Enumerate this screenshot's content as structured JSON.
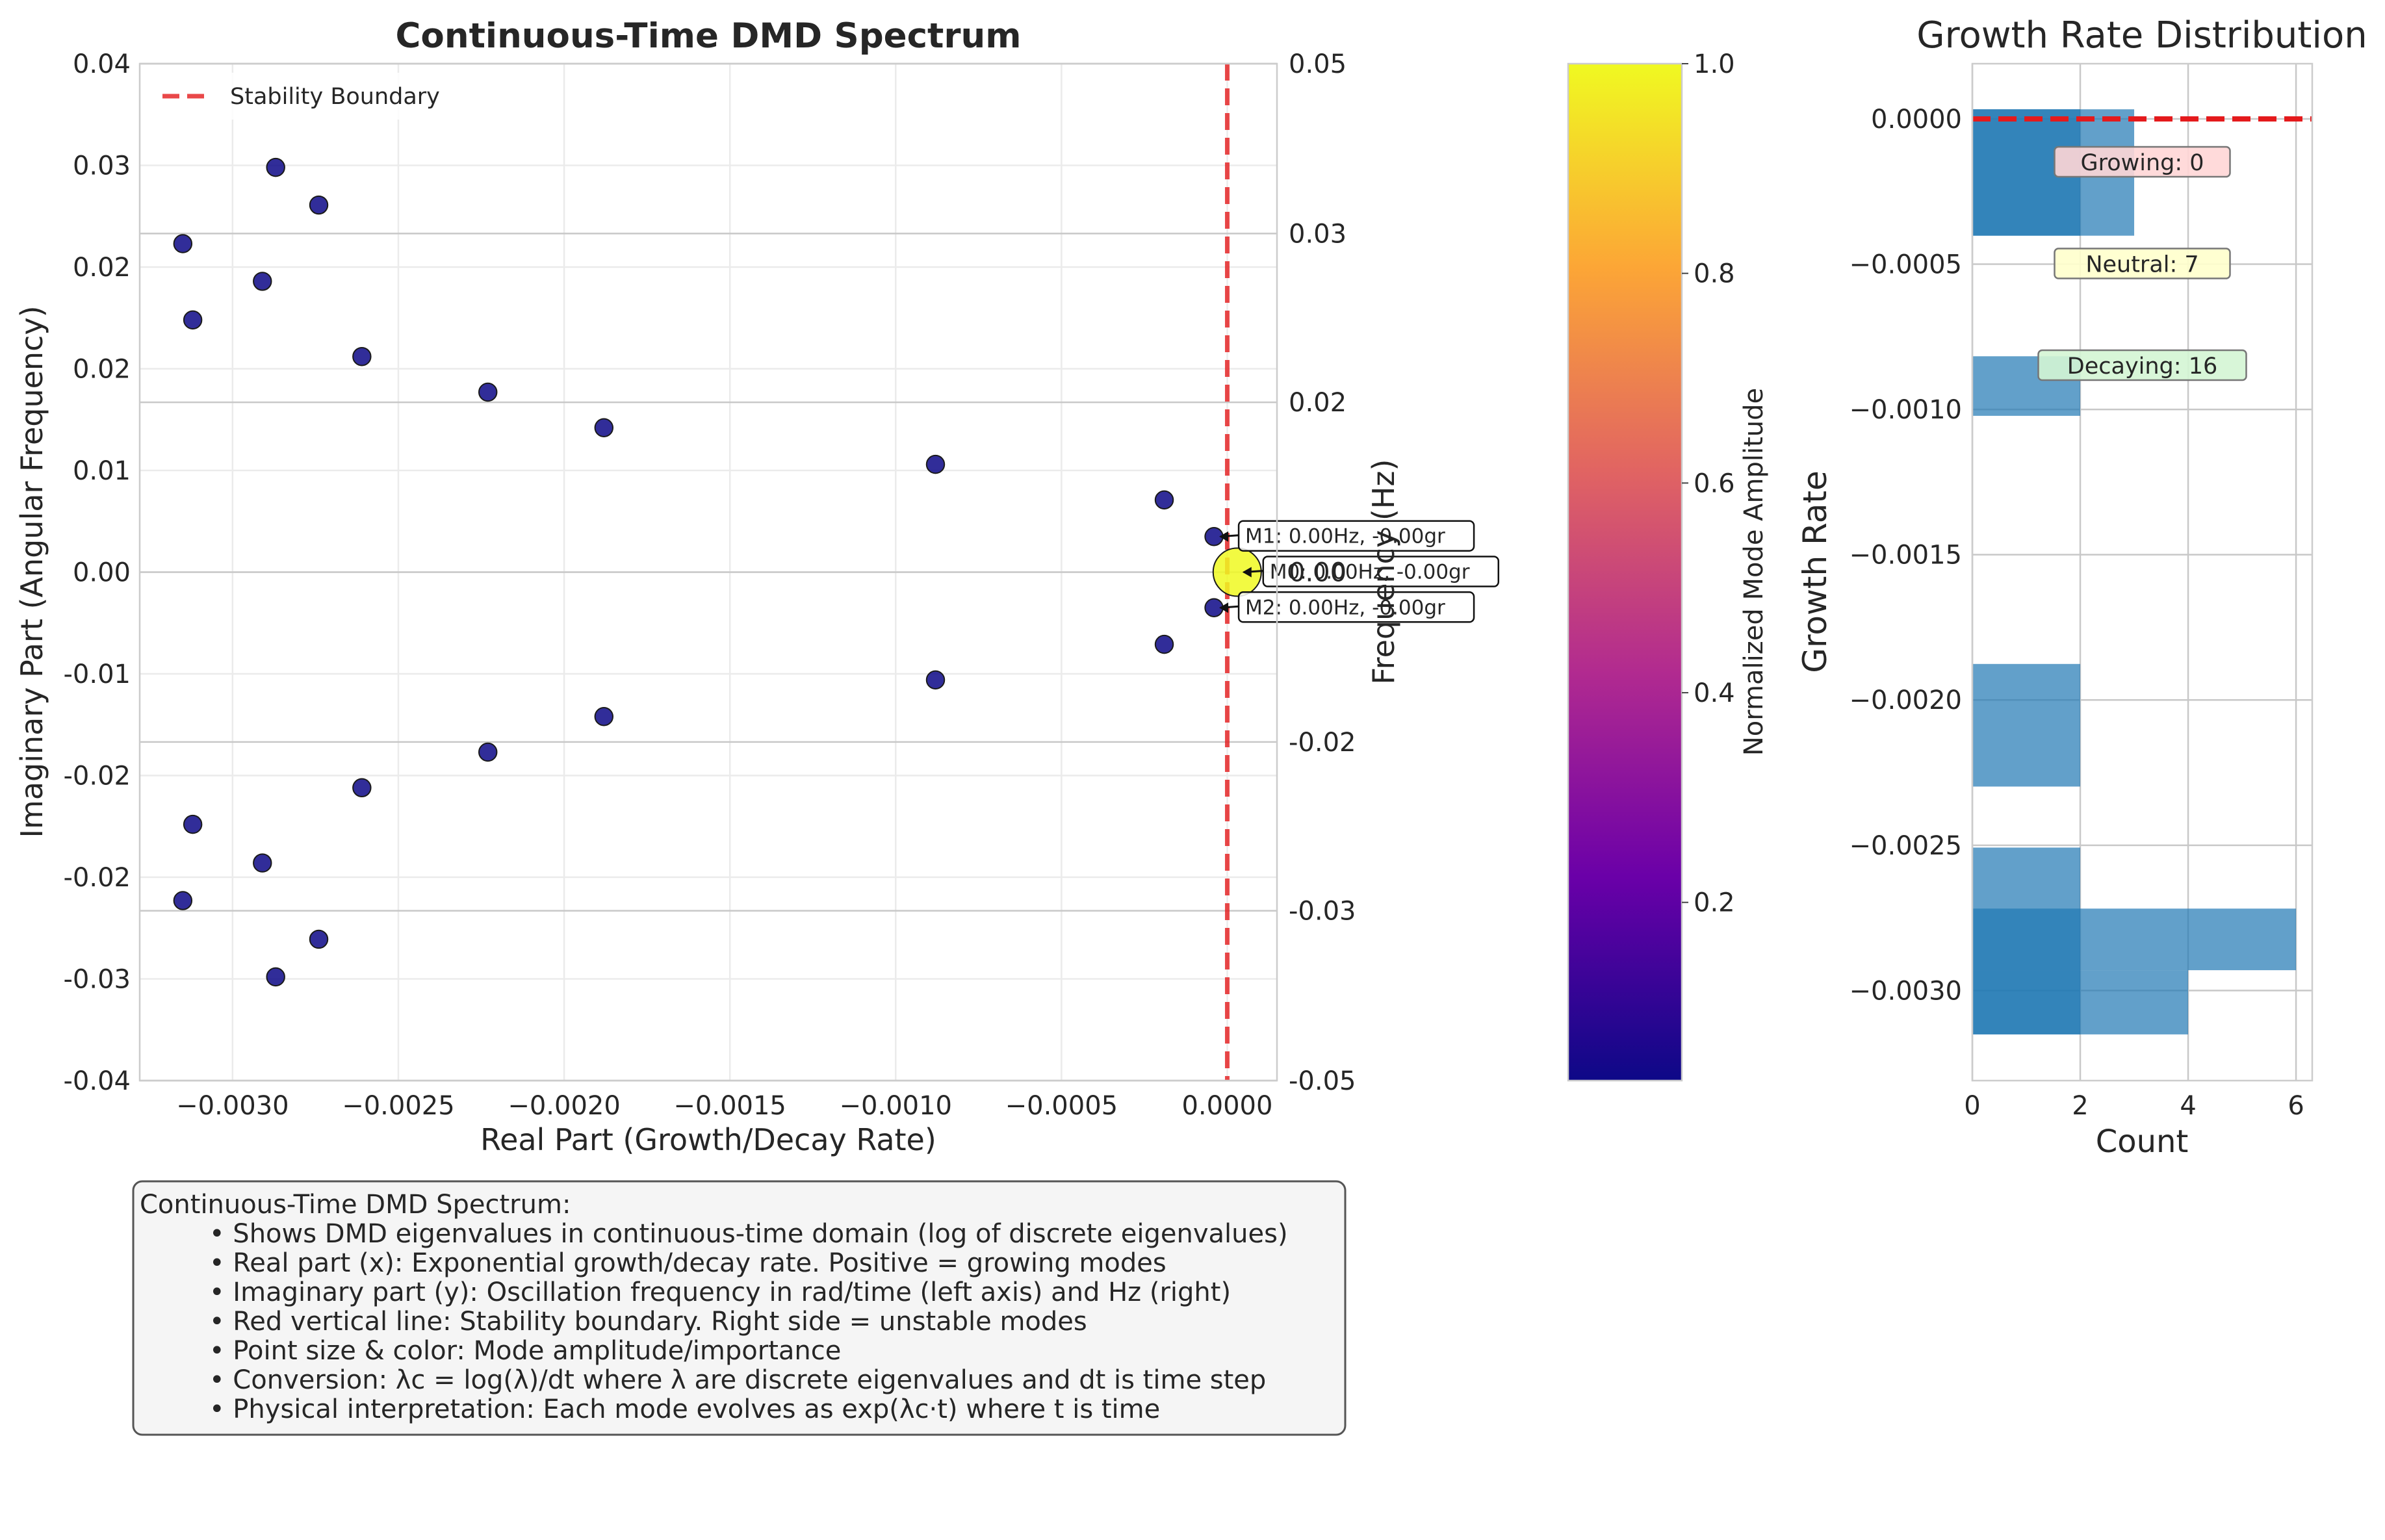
{
  "scatter": {
    "title": "Continuous-Time DMD Spectrum",
    "xlabel": "Real Part (Growth/Decay Rate)",
    "ylabel": "Imaginary Part (Angular Frequency)",
    "ylabel_right": "Frequency (Hz)",
    "xlim": [
      -0.00328,
      0.00015
    ],
    "ylim": [
      -0.05,
      0.05
    ],
    "x_ticks": [
      {
        "v": -0.003,
        "label": "−0.0030"
      },
      {
        "v": -0.0025,
        "label": "−0.0025"
      },
      {
        "v": -0.002,
        "label": "−0.0020"
      },
      {
        "v": -0.0015,
        "label": "−0.0015"
      },
      {
        "v": -0.001,
        "label": "−0.0010"
      },
      {
        "v": -0.0005,
        "label": "−0.0005"
      },
      {
        "v": 0.0,
        "label": "0.0000"
      }
    ],
    "y_ticks_left": [
      {
        "v": -0.05,
        "label": "-0.04"
      },
      {
        "v": -0.04,
        "label": "-0.03"
      },
      {
        "v": -0.03,
        "label": "-0.02"
      },
      {
        "v": -0.02,
        "label": "-0.02"
      },
      {
        "v": -0.01,
        "label": "-0.01"
      },
      {
        "v": 0.0,
        "label": "0.00"
      },
      {
        "v": 0.01,
        "label": "0.01"
      },
      {
        "v": 0.02,
        "label": "0.02"
      },
      {
        "v": 0.03,
        "label": "0.02"
      },
      {
        "v": 0.04,
        "label": "0.03"
      },
      {
        "v": 0.05,
        "label": "0.04"
      }
    ],
    "y_ticks_right": [
      {
        "v": -0.05,
        "label": "-0.05"
      },
      {
        "v": -0.0333,
        "label": "-0.03"
      },
      {
        "v": -0.0167,
        "label": "-0.02"
      },
      {
        "v": 0.0,
        "label": "0.00"
      },
      {
        "v": 0.0167,
        "label": "0.02"
      },
      {
        "v": 0.0333,
        "label": "0.03"
      },
      {
        "v": 0.05,
        "label": "0.05"
      }
    ],
    "legend": {
      "label": "Stability Boundary",
      "position": "upper-left"
    },
    "stability_line_x": 0.0,
    "points": [
      {
        "x": -0.00315,
        "y": 0.0323,
        "amp": 0.03
      },
      {
        "x": -0.00287,
        "y": 0.0398,
        "amp": 0.03
      },
      {
        "x": -0.00274,
        "y": 0.0361,
        "amp": 0.03
      },
      {
        "x": -0.00312,
        "y": 0.0248,
        "amp": 0.03
      },
      {
        "x": -0.00291,
        "y": 0.0286,
        "amp": 0.03
      },
      {
        "x": -0.00261,
        "y": 0.0212,
        "amp": 0.03
      },
      {
        "x": -0.00223,
        "y": 0.0177,
        "amp": 0.03
      },
      {
        "x": -0.00188,
        "y": 0.0142,
        "amp": 0.03
      },
      {
        "x": -0.00088,
        "y": 0.0106,
        "amp": 0.03
      },
      {
        "x": -0.00019,
        "y": 0.0071,
        "amp": 0.03
      },
      {
        "x": -4e-05,
        "y": 0.0035,
        "amp": 0.03
      },
      {
        "x": 3e-05,
        "y": 0.0,
        "amp": 1.0
      },
      {
        "x": -4e-05,
        "y": -0.0035,
        "amp": 0.03
      },
      {
        "x": -0.00019,
        "y": -0.0071,
        "amp": 0.03
      },
      {
        "x": -0.00088,
        "y": -0.0106,
        "amp": 0.03
      },
      {
        "x": -0.00188,
        "y": -0.0142,
        "amp": 0.03
      },
      {
        "x": -0.00223,
        "y": -0.0177,
        "amp": 0.03
      },
      {
        "x": -0.00261,
        "y": -0.0212,
        "amp": 0.03
      },
      {
        "x": -0.00312,
        "y": -0.0248,
        "amp": 0.03
      },
      {
        "x": -0.00291,
        "y": -0.0286,
        "amp": 0.03
      },
      {
        "x": -0.00315,
        "y": -0.0323,
        "amp": 0.03
      },
      {
        "x": -0.00274,
        "y": -0.0361,
        "amp": 0.03
      },
      {
        "x": -0.00287,
        "y": -0.0398,
        "amp": 0.03
      }
    ],
    "annotations": [
      {
        "text": "M1: 0.00Hz, -0.00gr",
        "x": -4e-05,
        "y": 0.0035
      },
      {
        "text": "M0: 0.00Hz, -0.00gr",
        "x": 3e-05,
        "y": 0.0
      },
      {
        "text": "M2: 0.00Hz, -0.00gr",
        "x": -4e-05,
        "y": -0.0035
      }
    ]
  },
  "colorbar": {
    "label": "Normalized Mode Amplitude",
    "range": [
      0.03,
      1.0
    ],
    "ticks": [
      {
        "v": 0.2,
        "label": "0.2"
      },
      {
        "v": 0.4,
        "label": "0.4"
      },
      {
        "v": 0.6,
        "label": "0.6"
      },
      {
        "v": 0.8,
        "label": "0.8"
      },
      {
        "v": 1.0,
        "label": "1.0"
      }
    ],
    "colormap": "plasma",
    "stops": [
      "#0d0887",
      "#6a00a8",
      "#b12a90",
      "#e16462",
      "#fca636",
      "#f0f921"
    ]
  },
  "histogram": {
    "title": "Growth Rate Distribution",
    "xlabel": "Count",
    "ylabel": "Growth Rate",
    "xlim": [
      0,
      6.3
    ],
    "ylim": [
      -0.00331,
      0.00019
    ],
    "x_ticks": [
      {
        "v": 0,
        "label": "0"
      },
      {
        "v": 2,
        "label": "2"
      },
      {
        "v": 4,
        "label": "4"
      },
      {
        "v": 6,
        "label": "6"
      }
    ],
    "y_ticks": [
      {
        "v": 0.0,
        "label": "0.0000"
      },
      {
        "v": -0.0005,
        "label": "−0.0005"
      },
      {
        "v": -0.001,
        "label": "−0.0010"
      },
      {
        "v": -0.0015,
        "label": "−0.0015"
      },
      {
        "v": -0.002,
        "label": "−0.0020"
      },
      {
        "v": -0.0025,
        "label": "−0.0025"
      },
      {
        "v": -0.003,
        "label": "−0.0030"
      }
    ],
    "bins": [
      {
        "lo": -0.000402,
        "hi": 3.3e-05,
        "count": 3
      },
      {
        "lo": -0.000402,
        "hi": 3.3e-05,
        "count": 2
      },
      {
        "lo": -0.001022,
        "hi": -0.000817,
        "count": 2
      },
      {
        "lo": -0.002298,
        "hi": -0.001876,
        "count": 2
      },
      {
        "lo": -0.003151,
        "hi": -0.002508,
        "count": 2
      },
      {
        "lo": -0.00293,
        "hi": -0.002718,
        "count": 6
      },
      {
        "lo": -0.003151,
        "hi": -0.00293,
        "count": 4
      }
    ],
    "zero_line": 0.0,
    "labels": [
      {
        "text": "Growing: 0",
        "y": -0.00015,
        "bg": "#ffd6d6"
      },
      {
        "text": "Neutral: 7",
        "y": -0.0005,
        "bg": "#ffffcc"
      },
      {
        "text": "Decaying: 16",
        "y": -0.00085,
        "bg": "#d4f5d4"
      }
    ]
  },
  "description": {
    "title": "Continuous-Time DMD Spectrum:",
    "lines": [
      "• Shows DMD eigenvalues in continuous-time domain (log of discrete eigenvalues)",
      "• Real part (x): Exponential growth/decay rate. Positive = growing modes",
      "• Imaginary part (y): Oscillation frequency in rad/time (left axis) and Hz (right)",
      "• Red vertical line: Stability boundary. Right side = unstable modes",
      "• Point size & color: Mode amplitude/importance",
      "• Conversion: λc = log(λ)/dt where λ are discrete eigenvalues and dt is time step",
      "• Physical interpretation: Each mode evolves as exp(λc·t) where t is time"
    ]
  }
}
